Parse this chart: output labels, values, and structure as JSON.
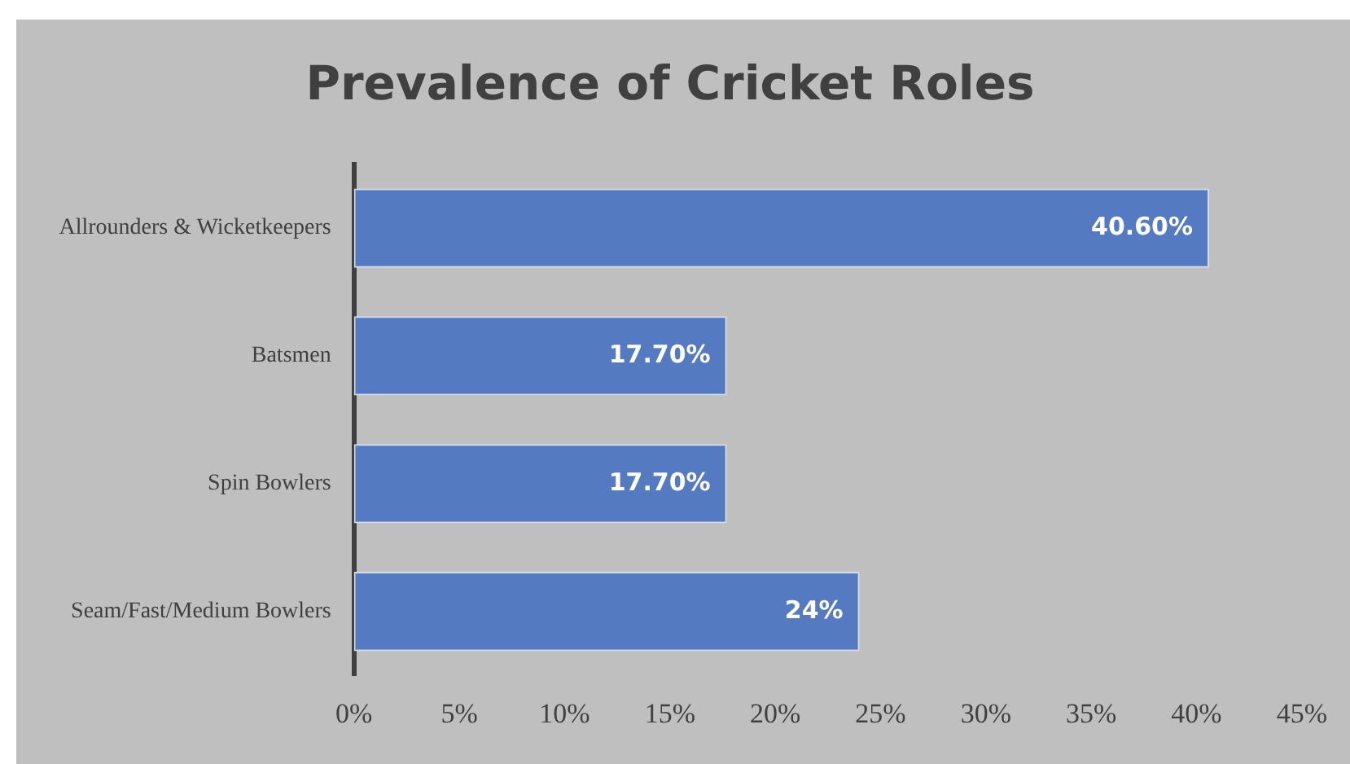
{
  "chart_data": {
    "type": "bar",
    "orientation": "horizontal",
    "title": "Prevalence of Cricket Roles",
    "categories": [
      "Allrounders & Wicketkeepers",
      "Batsmen",
      "Spin Bowlers",
      "Seam/Fast/Medium Bowlers"
    ],
    "values": [
      40.6,
      17.7,
      17.7,
      24
    ],
    "color": "#547bc2",
    "value_labels": [
      "40.60%",
      "17.70%",
      "17.70%",
      "24%"
    ],
    "xlim": [
      0,
      45
    ],
    "xticks": [
      {
        "value": 0,
        "label": "0%"
      },
      {
        "value": 5,
        "label": "5%"
      },
      {
        "value": 10,
        "label": "10%"
      },
      {
        "value": 15,
        "label": "15%"
      },
      {
        "value": 20,
        "label": "20%"
      },
      {
        "value": 25,
        "label": "25%"
      },
      {
        "value": 30,
        "label": "30%"
      },
      {
        "value": 35,
        "label": "35%"
      },
      {
        "value": 40,
        "label": "40%"
      },
      {
        "value": 45,
        "label": "45%"
      }
    ],
    "grid": false,
    "legend": false
  }
}
